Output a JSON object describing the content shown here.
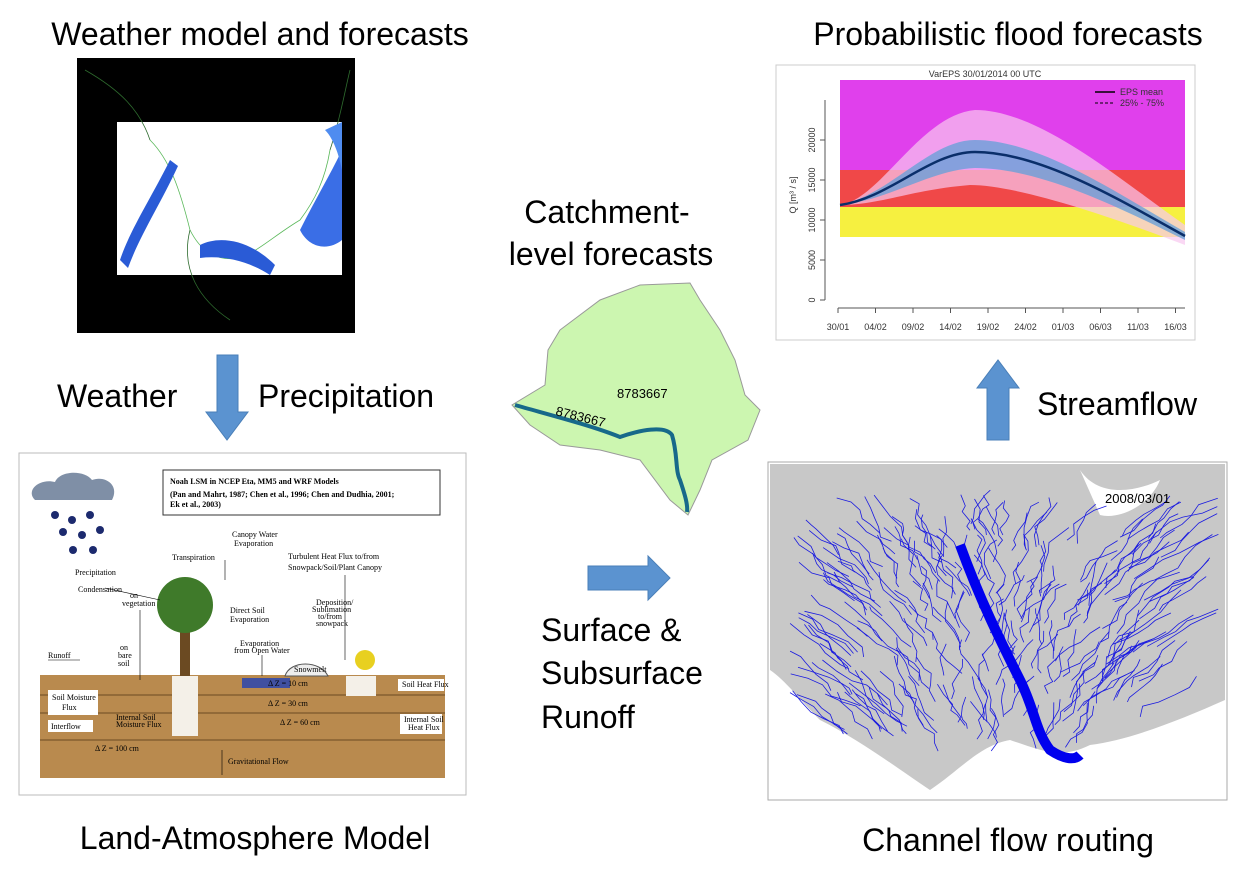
{
  "labels": {
    "weather_model": "Weather model and forecasts",
    "flood_forecasts": "Probabilistic flood forecasts",
    "weather": "Weather",
    "precipitation": "Precipitation",
    "catchment": [
      "Catchment-",
      "level forecasts"
    ],
    "runoff": [
      "Surface &",
      "Subsurface",
      "Runoff"
    ],
    "streamflow": "Streamflow",
    "land_model": "Land-Atmosphere Model",
    "channel_routing": "Channel flow routing"
  },
  "catchment_map": {
    "area_id": "8783667",
    "river_id": "8783667"
  },
  "flood_chart": {
    "title": "VarEPS 30/01/2014 00 UTC",
    "legend": [
      "EPS mean",
      "25% - 75%"
    ],
    "y_label": "Q [m³ / s]",
    "y_ticks": [
      "0",
      "5000",
      "10000",
      "15000",
      "20000"
    ],
    "x_ticks": [
      "30/01",
      "04/02",
      "09/02",
      "14/02",
      "19/02",
      "24/02",
      "01/03",
      "06/03",
      "11/03",
      "16/03"
    ]
  },
  "channel_map": {
    "date": "2008/03/01"
  },
  "noah": {
    "title": "Noah LSM in NCEP Eta, MM5 and WRF Models",
    "citation": [
      "(Pan and Mahrt, 1987; Chen et al., 1996; Chen and Dudhia, 2001;",
      "Ek et al., 2003)"
    ],
    "precipitation": "Precipitation",
    "condensation": "Condensation",
    "on_vegetation": [
      "on",
      "vegetation"
    ],
    "on_bare_soil": [
      "on",
      "bare",
      "soil"
    ],
    "transpiration": "Transpiration",
    "canopy_evaporation": [
      "Canopy Water",
      "Evaporation"
    ],
    "soil_evaporation": [
      "Direct Soil",
      "Evaporation"
    ],
    "open_water": [
      "Evaporation",
      "from Open Water"
    ],
    "heat_flux": [
      "Turbulent Heat Flux to/from",
      "Snowpack/Soil/Plant Canopy"
    ],
    "sublimation": [
      "Deposition/",
      "Sublimation",
      "to/from",
      "snowpack"
    ],
    "snowmelt": "Snowmelt",
    "runoff": "Runoff",
    "soil_moisture_flux": [
      "Soil Moisture",
      "Flux"
    ],
    "interflow": "Interflow",
    "internal_moisture": [
      "Internal Soil",
      "Moisture Flux"
    ],
    "soil_heat_flux": "Soil Heat Flux",
    "internal_heat": [
      "Internal Soil",
      "Heat Flux"
    ],
    "layers": [
      "Δ Z = 10 cm",
      "Δ Z = 30 cm",
      "Δ Z = 60 cm",
      "Δ Z = 100 cm"
    ],
    "gravitational": "Gravitational Flow"
  }
}
